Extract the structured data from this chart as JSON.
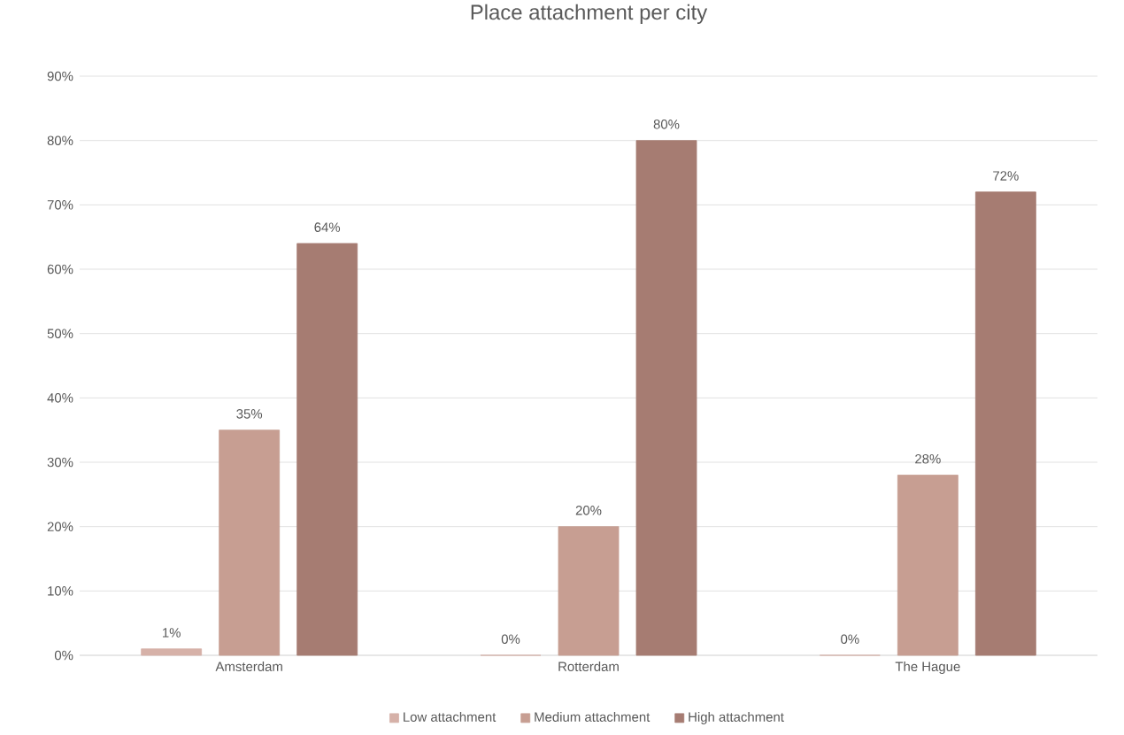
{
  "chart_data": {
    "type": "bar",
    "title": "Place attachment per city",
    "categories": [
      "Amsterdam",
      "Rotterdam",
      "The Hague"
    ],
    "series": [
      {
        "name": "Low attachment",
        "color": "#d6b1a8",
        "values": [
          1,
          0,
          0
        ],
        "value_labels": [
          "1%",
          "0%",
          "0%"
        ]
      },
      {
        "name": "Medium attachment",
        "color": "#c79e92",
        "values": [
          35,
          20,
          28
        ],
        "value_labels": [
          "35%",
          "20%",
          "28%"
        ]
      },
      {
        "name": "High attachment",
        "color": "#a67c72",
        "values": [
          64,
          80,
          72
        ],
        "value_labels": [
          "64%",
          "80%",
          "72%"
        ]
      }
    ],
    "ylim": [
      0,
      90
    ],
    "yticks": [
      {
        "value": 0,
        "label": "0%"
      },
      {
        "value": 10,
        "label": "10%"
      },
      {
        "value": 20,
        "label": "20%"
      },
      {
        "value": 30,
        "label": "30%"
      },
      {
        "value": 40,
        "label": "40%"
      },
      {
        "value": 50,
        "label": "50%"
      },
      {
        "value": 60,
        "label": "60%"
      },
      {
        "value": 70,
        "label": "70%"
      },
      {
        "value": 80,
        "label": "80%"
      },
      {
        "value": 90,
        "label": "90%"
      }
    ],
    "grid": "y",
    "legend": "bottom"
  }
}
